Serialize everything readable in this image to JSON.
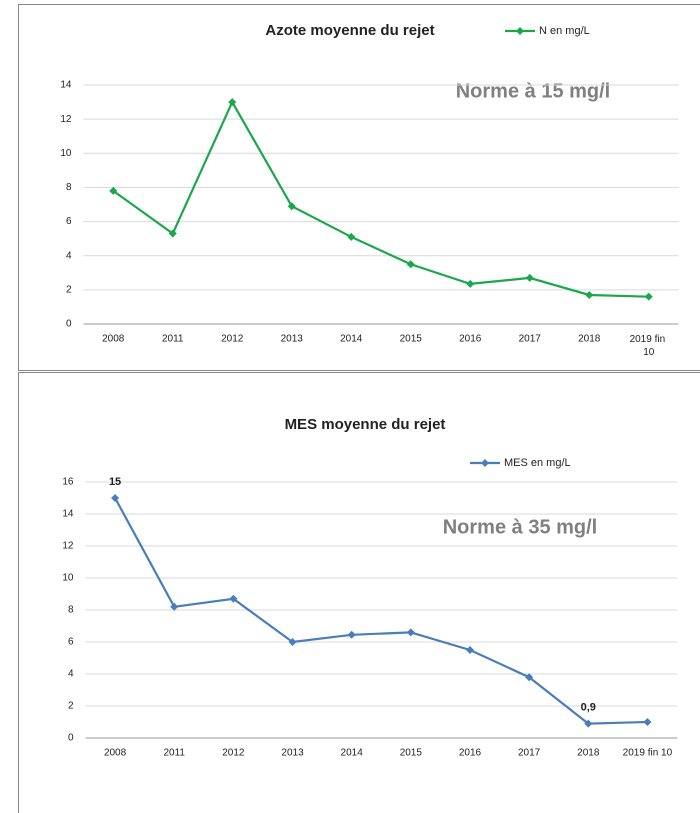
{
  "chart_data": [
    {
      "type": "line",
      "title": "Azote moyenne du rejet",
      "annotation": "Norme à 15 mg/l",
      "categories": [
        "2008",
        "2011",
        "2012",
        "2013",
        "2014",
        "2015",
        "2016",
        "2017",
        "2018",
        "2019 fin 10"
      ],
      "series": [
        {
          "name": "N en mg/L",
          "color": "#1aa84a",
          "values": [
            7.8,
            5.3,
            13.0,
            6.9,
            5.1,
            3.5,
            2.35,
            2.7,
            1.7,
            1.6
          ]
        }
      ],
      "ylim": [
        0,
        14
      ],
      "yticks": [
        0,
        2,
        4,
        6,
        8,
        10,
        12,
        14
      ],
      "grid": true,
      "legend": "top-right"
    },
    {
      "type": "line",
      "title": "MES moyenne du rejet",
      "annotation": "Norme à 35 mg/l",
      "categories": [
        "2008",
        "2011",
        "2012",
        "2013",
        "2014",
        "2015",
        "2016",
        "2017",
        "2018",
        "2019 fin 10"
      ],
      "series": [
        {
          "name": "MES en mg/L",
          "color": "#4a7ebb",
          "values": [
            15,
            8.2,
            8.7,
            6.0,
            6.45,
            6.6,
            5.5,
            3.8,
            0.9,
            1.0
          ],
          "value_labels": [
            "15",
            null,
            null,
            null,
            null,
            null,
            null,
            null,
            "0,9",
            null
          ]
        }
      ],
      "ylim": [
        0,
        16
      ],
      "yticks": [
        0,
        2,
        4,
        6,
        8,
        10,
        12,
        14,
        16
      ],
      "grid": true,
      "legend": "top-right"
    }
  ]
}
